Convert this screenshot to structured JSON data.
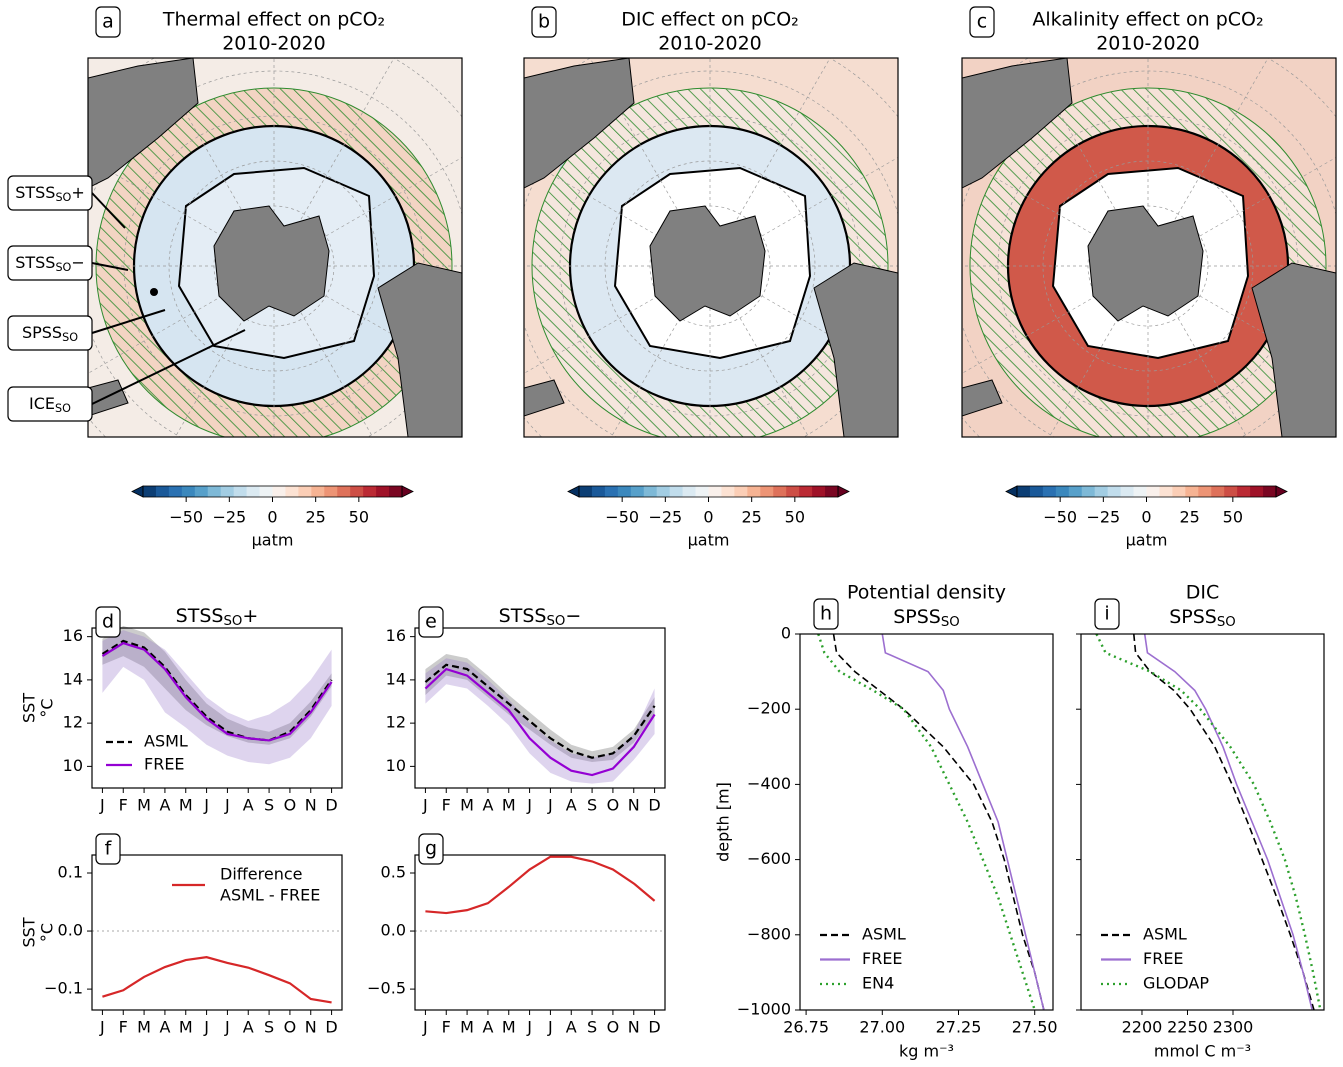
{
  "chart_data": [
    {
      "type": "map",
      "panel": "a",
      "title": "Thermal effect on pCO₂",
      "subtitle": "2010-2020",
      "colorbar": {
        "clim": [
          -75,
          75
        ],
        "ticks": [
          {
            "value": -50,
            "label": "−50"
          },
          {
            "value": -25,
            "label": "−25"
          },
          0,
          25,
          50
        ],
        "label": "µatm"
      },
      "regions": [
        {
          "text": "STSS",
          "sub": "SO",
          "suffix": "+"
        },
        {
          "text": "STSS",
          "sub": "SO",
          "suffix": "−"
        },
        {
          "text": "SPSS",
          "sub": "SO"
        },
        {
          "text": "ICE",
          "sub": "SO"
        }
      ]
    },
    {
      "type": "map",
      "panel": "b",
      "title": "DIC effect on pCO₂",
      "subtitle": "2010-2020",
      "colorbar": {
        "clim": [
          -75,
          75
        ],
        "ticks": [
          {
            "value": -50,
            "label": "−50"
          },
          {
            "value": -25,
            "label": "−25"
          },
          0,
          25,
          50
        ],
        "label": "µatm"
      }
    },
    {
      "type": "map",
      "panel": "c",
      "title": "Alkalinity effect on pCO₂",
      "subtitle": "2010-2020",
      "colorbar": {
        "clim": [
          -75,
          75
        ],
        "ticks": [
          {
            "value": -50,
            "label": "−50"
          },
          {
            "value": -25,
            "label": "−25"
          },
          0,
          25,
          50
        ],
        "label": "µatm"
      }
    },
    {
      "type": "line",
      "panel": "d",
      "title": {
        "text": "STSS",
        "sub": "SO",
        "suffix": "+"
      },
      "ylabel": [
        "SST",
        "°C"
      ],
      "categories": [
        "J",
        "F",
        "M",
        "A",
        "M",
        "J",
        "J",
        "A",
        "S",
        "O",
        "N",
        "D"
      ],
      "ylim": [
        9.0,
        16.4
      ],
      "yticks": [
        10,
        12,
        14,
        16
      ],
      "legend": "lower left",
      "series": [
        {
          "name": "ASML",
          "color": "#000000",
          "style": "dashed",
          "band_color": "#555555",
          "values": [
            15.2,
            15.8,
            15.5,
            14.6,
            13.3,
            12.3,
            11.6,
            11.3,
            11.2,
            11.6,
            12.6,
            14.0
          ],
          "band_low": [
            14.7,
            15.1,
            14.6,
            13.6,
            12.6,
            11.9,
            11.4,
            11.1,
            11.0,
            11.3,
            12.3,
            13.7
          ],
          "band_high": [
            15.9,
            16.5,
            16.2,
            15.3,
            14.0,
            12.9,
            12.2,
            11.8,
            11.6,
            12.0,
            13.0,
            14.3
          ]
        },
        {
          "name": "FREE",
          "color": "#9400d3",
          "style": "solid",
          "band_color": "#9370c8",
          "values": [
            15.1,
            15.7,
            15.4,
            14.5,
            13.2,
            12.2,
            11.5,
            11.3,
            11.2,
            11.5,
            12.5,
            13.9
          ],
          "band_low": [
            13.4,
            14.6,
            14.0,
            12.5,
            11.8,
            11.0,
            10.5,
            10.2,
            10.1,
            10.4,
            11.3,
            12.8
          ],
          "band_high": [
            15.8,
            16.3,
            16.0,
            15.4,
            14.3,
            13.2,
            12.5,
            12.1,
            12.4,
            13.0,
            14.0,
            15.4
          ]
        }
      ]
    },
    {
      "type": "line",
      "panel": "e",
      "title": {
        "text": "STSS",
        "sub": "SO",
        "suffix": "−"
      },
      "categories": [
        "J",
        "F",
        "M",
        "A",
        "M",
        "J",
        "J",
        "A",
        "S",
        "O",
        "N",
        "D"
      ],
      "ylim": [
        9.0,
        16.4
      ],
      "yticks": [
        10,
        12,
        14,
        16
      ],
      "series": [
        {
          "name": "ASML",
          "color": "#000000",
          "style": "dashed",
          "band_color": "#555555",
          "values": [
            13.9,
            14.7,
            14.5,
            13.7,
            12.9,
            12.1,
            11.3,
            10.7,
            10.4,
            10.6,
            11.4,
            12.8
          ],
          "band_low": [
            13.3,
            14.2,
            14.0,
            13.2,
            12.4,
            11.7,
            11.0,
            10.4,
            10.2,
            10.3,
            11.1,
            12.4
          ],
          "band_high": [
            14.5,
            15.2,
            15.0,
            14.2,
            13.3,
            12.5,
            11.7,
            11.0,
            10.7,
            10.9,
            11.7,
            13.2
          ]
        },
        {
          "name": "FREE",
          "color": "#9400d3",
          "style": "solid",
          "band_color": "#9370c8",
          "values": [
            13.6,
            14.5,
            14.2,
            13.4,
            12.6,
            11.3,
            10.4,
            9.8,
            9.6,
            9.9,
            10.9,
            12.4
          ],
          "band_low": [
            12.9,
            13.8,
            13.6,
            12.8,
            11.9,
            10.6,
            9.7,
            9.3,
            9.2,
            9.3,
            10.3,
            11.5
          ],
          "band_high": [
            14.3,
            15.0,
            14.8,
            14.0,
            13.1,
            12.0,
            11.2,
            10.6,
            10.4,
            10.6,
            11.5,
            13.6
          ]
        }
      ]
    },
    {
      "type": "line",
      "panel": "f",
      "ylabel": [
        "SST",
        "°C"
      ],
      "categories": [
        "J",
        "F",
        "M",
        "A",
        "M",
        "J",
        "J",
        "A",
        "S",
        "O",
        "N",
        "D"
      ],
      "ylim": [
        -0.136,
        0.131
      ],
      "yticks": [
        {
          "value": -0.1,
          "label": "−0.1"
        },
        {
          "value": 0,
          "label": "0.0"
        },
        0.1
      ],
      "zero_line": true,
      "legend": "upper right",
      "series": [
        {
          "name": [
            "Difference",
            "ASML - FREE"
          ],
          "color": "#d62728",
          "style": "solid",
          "values": [
            -0.113,
            -0.102,
            -0.079,
            -0.062,
            -0.05,
            -0.045,
            -0.055,
            -0.063,
            -0.076,
            -0.09,
            -0.117,
            -0.123
          ]
        }
      ]
    },
    {
      "type": "line",
      "panel": "g",
      "categories": [
        "J",
        "F",
        "M",
        "A",
        "M",
        "J",
        "J",
        "A",
        "S",
        "O",
        "N",
        "D"
      ],
      "ylim": [
        -0.68,
        0.655
      ],
      "yticks": [
        {
          "value": -0.5,
          "label": "−0.5"
        },
        {
          "value": 0,
          "label": "0.0"
        },
        0.5
      ],
      "zero_line": true,
      "series": [
        {
          "color": "#d62728",
          "style": "solid",
          "values": [
            0.17,
            0.155,
            0.18,
            0.24,
            0.38,
            0.53,
            0.64,
            0.64,
            0.6,
            0.53,
            0.41,
            0.26
          ]
        }
      ]
    },
    {
      "type": "profile",
      "panel": "h",
      "title": "Potential density",
      "subtitle": {
        "text": "SPSS",
        "sub": "SO"
      },
      "xlabel": "kg m⁻³",
      "ylabel": "depth [m]",
      "legend": "lower left",
      "depth": [
        0,
        -50,
        -100,
        -150,
        -200,
        -300,
        -400,
        -500,
        -600,
        -700,
        -800,
        -900,
        -1000
      ],
      "xlim": [
        26.73,
        27.56
      ],
      "xticks": [
        26.75,
        {
          "value": 27.0,
          "label": "27.00"
        },
        27.25,
        {
          "value": 27.5,
          "label": "27.50"
        }
      ],
      "ylim": [
        -1000,
        0
      ],
      "yticks": [
        0,
        {
          "value": -200,
          "label": "−200"
        },
        {
          "value": -400,
          "label": "−400"
        },
        {
          "value": -600,
          "label": "−600"
        },
        {
          "value": -800,
          "label": "−800"
        },
        {
          "value": -1000,
          "label": "−1000"
        }
      ],
      "series": [
        {
          "name": "ASML",
          "color": "#000000",
          "style": "dashed",
          "values": [
            26.84,
            26.85,
            26.91,
            26.99,
            27.07,
            27.2,
            27.3,
            27.36,
            27.4,
            27.43,
            27.46,
            27.5,
            27.53
          ]
        },
        {
          "name": "FREE",
          "color": "#9c6fd0",
          "style": "solid",
          "values": [
            27.0,
            27.01,
            27.15,
            27.2,
            27.22,
            27.28,
            27.33,
            27.38,
            27.41,
            27.44,
            27.47,
            27.5,
            27.53
          ]
        },
        {
          "name": "EN4",
          "color": "#2ca02c",
          "style": "dotted",
          "values": [
            26.79,
            26.81,
            26.86,
            26.97,
            27.07,
            27.16,
            27.22,
            27.28,
            27.33,
            27.38,
            27.42,
            27.46,
            27.5
          ]
        }
      ]
    },
    {
      "type": "profile",
      "panel": "i",
      "title": "DIC",
      "subtitle": {
        "text": "SPSS",
        "sub": "SO"
      },
      "xlabel": "mmol C m⁻³",
      "legend": "lower left",
      "ytick_labels": false,
      "depth": [
        0,
        -50,
        -100,
        -150,
        -200,
        -300,
        -400,
        -500,
        -600,
        -700,
        -800,
        -900,
        -1000
      ],
      "xlim": [
        2133,
        2400
      ],
      "xticks": [
        2200,
        2250,
        2300
      ],
      "ylim": [
        -1000,
        0
      ],
      "yticks": [
        0,
        -200,
        -400,
        -600,
        -800,
        -1000
      ],
      "series": [
        {
          "name": "ASML",
          "color": "#000000",
          "style": "dashed",
          "values": [
            2191,
            2193,
            2209,
            2235,
            2253,
            2280,
            2299,
            2316,
            2332,
            2348,
            2363,
            2377,
            2389
          ]
        },
        {
          "name": "FREE",
          "color": "#9c6fd0",
          "style": "solid",
          "values": [
            2203,
            2206,
            2236,
            2258,
            2270,
            2289,
            2304,
            2321,
            2338,
            2352,
            2366,
            2377,
            2387
          ]
        },
        {
          "name": "GLODAP",
          "color": "#2ca02c",
          "style": "dotted",
          "values": [
            2150,
            2160,
            2209,
            2243,
            2264,
            2297,
            2323,
            2341,
            2357,
            2369,
            2379,
            2388,
            2396
          ]
        }
      ]
    }
  ]
}
